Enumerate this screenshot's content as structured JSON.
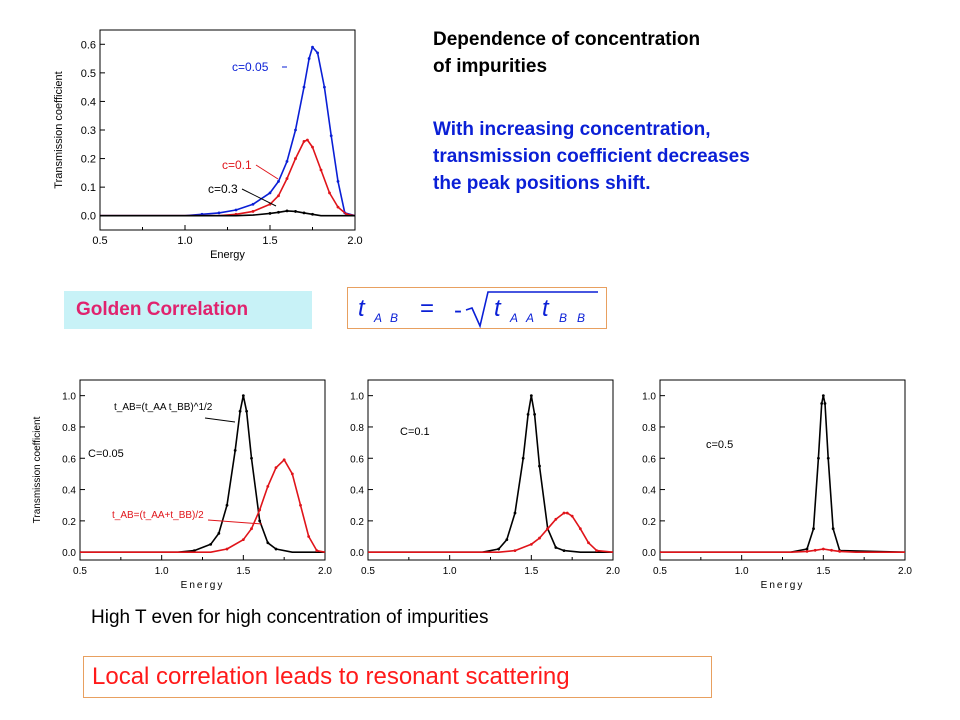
{
  "text": {
    "heading": [
      "Dependence of concentration",
      "of impurities"
    ],
    "blue": [
      "With increasing concentration,",
      "transmission coefficient decreases",
      "the peak positions shift."
    ],
    "golden": "Golden Correlation",
    "highT": "High T even for high concentration of impurities",
    "local": "Local correlation leads to resonant scattering"
  },
  "formula": {
    "lhs_t": "t",
    "lhs_sub1": "A",
    "lhs_sub2": "B",
    "eq": "=",
    "minus": "-",
    "t1": "t",
    "t1_sub1": "A",
    "t1_sub2": "A",
    "t2": "t",
    "t2_sub1": "B",
    "t2_sub2": "B"
  },
  "colors": {
    "blue": "#0a1fd6",
    "red": "#e0141a",
    "black": "#000000",
    "pink": "#e0236e"
  },
  "chart_data": [
    {
      "type": "line",
      "xlabel": "Energy",
      "ylabel": "Transmission coefficient",
      "xlim": [
        0.5,
        2.0
      ],
      "ylim": [
        -0.05,
        0.65
      ],
      "xticks": [
        "0.5",
        "1.0",
        "1.5",
        "2.0"
      ],
      "yticks": [
        "0.0",
        "0.1",
        "0.2",
        "0.3",
        "0.4",
        "0.5",
        "0.6"
      ],
      "series": [
        {
          "name": "c=0.05",
          "color": "#0a1fd6",
          "x": [
            0.5,
            1.0,
            1.1,
            1.2,
            1.3,
            1.4,
            1.5,
            1.55,
            1.6,
            1.65,
            1.7,
            1.73,
            1.75,
            1.78,
            1.82,
            1.86,
            1.9,
            1.94,
            2.0
          ],
          "y": [
            0,
            0,
            0.005,
            0.01,
            0.02,
            0.04,
            0.08,
            0.12,
            0.19,
            0.3,
            0.45,
            0.55,
            0.59,
            0.57,
            0.45,
            0.28,
            0.12,
            0.01,
            0
          ]
        },
        {
          "name": "c=0.1",
          "color": "#e0141a",
          "x": [
            0.5,
            1.2,
            1.3,
            1.4,
            1.5,
            1.55,
            1.6,
            1.65,
            1.7,
            1.72,
            1.75,
            1.8,
            1.85,
            1.9,
            1.95,
            2.0
          ],
          "y": [
            0,
            0,
            0.005,
            0.015,
            0.04,
            0.07,
            0.13,
            0.2,
            0.26,
            0.265,
            0.24,
            0.16,
            0.08,
            0.03,
            0.005,
            0
          ]
        },
        {
          "name": "c=0.3",
          "color": "#000000",
          "x": [
            0.5,
            1.3,
            1.4,
            1.5,
            1.55,
            1.6,
            1.65,
            1.7,
            1.75,
            1.8,
            2.0
          ],
          "y": [
            0,
            0,
            0.002,
            0.008,
            0.012,
            0.017,
            0.015,
            0.01,
            0.005,
            0,
            0
          ]
        }
      ],
      "annotations": [
        "c=0.05",
        "c=0.1",
        "c=0.3"
      ]
    },
    {
      "type": "line",
      "xlabel": "Energy",
      "ylabel": "Transmission coefficient",
      "xlim": [
        0.5,
        2.0
      ],
      "ylim": [
        -0.05,
        1.1
      ],
      "xticks": [
        "0.5",
        "1.0",
        "1.5",
        "2.0"
      ],
      "yticks": [
        "0.0",
        "0.2",
        "0.4",
        "0.6",
        "0.8",
        "1.0"
      ],
      "label": "C=0.05",
      "annotations": [
        "t_AB=(t_AA t_BB)^1/2",
        "t_AB=(t_AA+t_BB)/2"
      ],
      "series": [
        {
          "name": "t_AB=(t_AA t_BB)^1/2",
          "color": "#000000",
          "x": [
            0.5,
            1.1,
            1.2,
            1.3,
            1.35,
            1.4,
            1.45,
            1.48,
            1.5,
            1.52,
            1.55,
            1.6,
            1.65,
            1.7,
            1.8,
            2.0
          ],
          "y": [
            0,
            0,
            0.01,
            0.05,
            0.12,
            0.3,
            0.65,
            0.9,
            1.0,
            0.9,
            0.6,
            0.2,
            0.06,
            0.02,
            0,
            0
          ]
        },
        {
          "name": "t_AB=(t_AA+t_BB)/2",
          "color": "#e0141a",
          "x": [
            0.5,
            1.3,
            1.4,
            1.5,
            1.55,
            1.6,
            1.65,
            1.7,
            1.75,
            1.8,
            1.85,
            1.9,
            1.95,
            2.0
          ],
          "y": [
            0,
            0,
            0.02,
            0.08,
            0.15,
            0.27,
            0.42,
            0.54,
            0.59,
            0.5,
            0.3,
            0.1,
            0.01,
            0
          ]
        }
      ]
    },
    {
      "type": "line",
      "xlim": [
        0.5,
        2.0
      ],
      "ylim": [
        -0.05,
        1.1
      ],
      "xticks": [
        "0.5",
        "1.0",
        "1.5",
        "2.0"
      ],
      "yticks": [
        "0.0",
        "0.2",
        "0.4",
        "0.6",
        "0.8",
        "1.0"
      ],
      "label": "C=0.1",
      "series": [
        {
          "name": "",
          "color": "#000000",
          "x": [
            0.5,
            1.2,
            1.3,
            1.35,
            1.4,
            1.45,
            1.48,
            1.5,
            1.52,
            1.55,
            1.6,
            1.65,
            1.7,
            1.8,
            2.0
          ],
          "y": [
            0,
            0,
            0.02,
            0.08,
            0.25,
            0.6,
            0.88,
            1.0,
            0.88,
            0.55,
            0.15,
            0.03,
            0.01,
            0,
            0
          ]
        },
        {
          "name": "",
          "color": "#e0141a",
          "x": [
            0.5,
            1.3,
            1.4,
            1.5,
            1.55,
            1.6,
            1.65,
            1.7,
            1.72,
            1.75,
            1.8,
            1.85,
            1.9,
            2.0
          ],
          "y": [
            0,
            0,
            0.01,
            0.05,
            0.09,
            0.15,
            0.21,
            0.25,
            0.25,
            0.23,
            0.15,
            0.06,
            0.01,
            0
          ]
        }
      ]
    },
    {
      "type": "line",
      "xlabel": "Energy",
      "xlim": [
        0.5,
        2.0
      ],
      "ylim": [
        -0.05,
        1.1
      ],
      "xticks": [
        "0.5",
        "1.0",
        "1.5",
        "2.0"
      ],
      "yticks": [
        "0.0",
        "0.2",
        "0.4",
        "0.6",
        "0.8",
        "1.0"
      ],
      "label": "c=0.5",
      "series": [
        {
          "name": "",
          "color": "#000000",
          "x": [
            0.5,
            1.3,
            1.4,
            1.44,
            1.47,
            1.49,
            1.5,
            1.51,
            1.53,
            1.56,
            1.6,
            2.0
          ],
          "y": [
            0,
            0,
            0.02,
            0.15,
            0.6,
            0.95,
            1.0,
            0.95,
            0.6,
            0.15,
            0.01,
            0
          ]
        },
        {
          "name": "",
          "color": "#e0141a",
          "x": [
            0.5,
            1.3,
            1.4,
            1.45,
            1.5,
            1.55,
            1.6,
            1.7,
            2.0
          ],
          "y": [
            0,
            0,
            0.005,
            0.012,
            0.02,
            0.012,
            0.005,
            0,
            0
          ]
        }
      ]
    }
  ]
}
